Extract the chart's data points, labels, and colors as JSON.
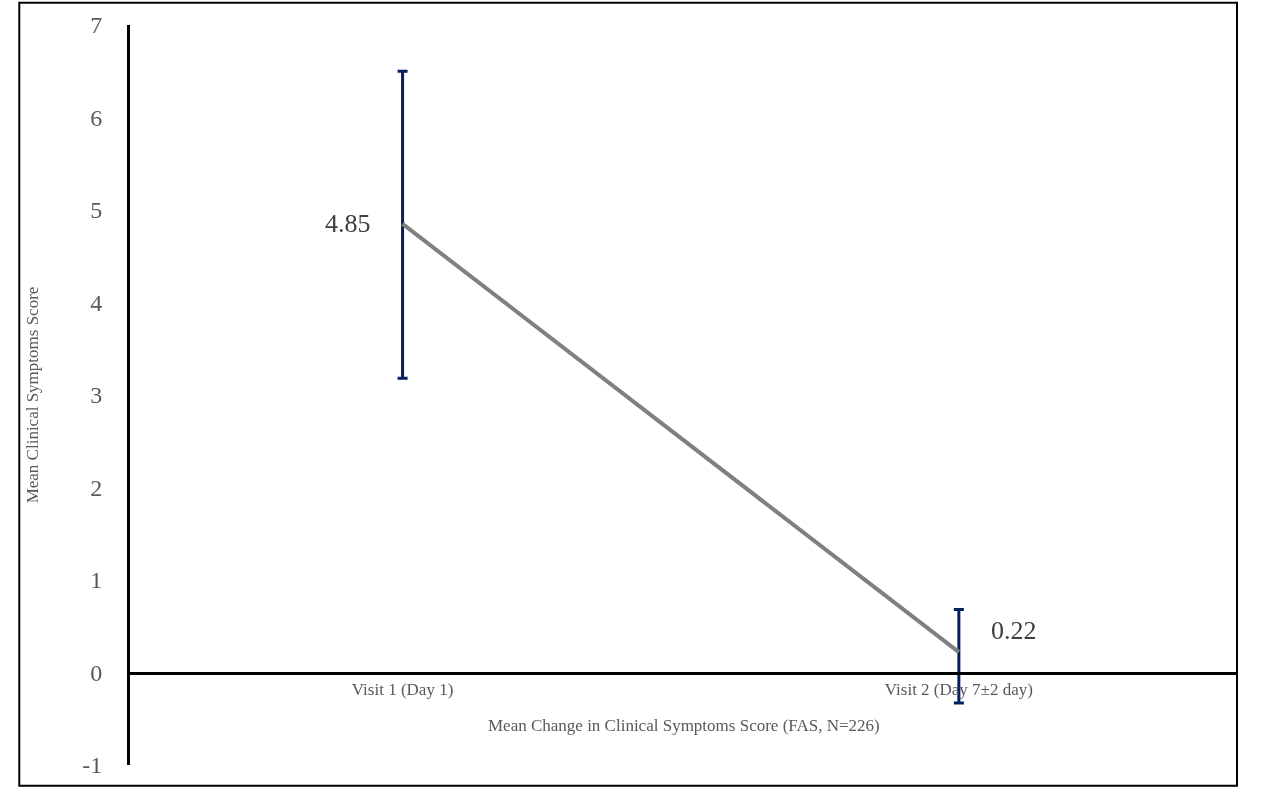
{
  "chart_data": {
    "type": "line",
    "xlabel": "Mean Change in Clinical Symptoms Score (FAS, N=226)",
    "ylabel": "Mean Clinical Symptoms Score",
    "categories": [
      "Visit 1 (Day 1)",
      "Visit 2 (Day 7±2 day)"
    ],
    "series": [
      {
        "color": "#808080",
        "values": [
          4.85,
          0.22
        ],
        "errors": [
          [
            3.18,
            6.5
          ],
          [
            -0.33,
            0.68
          ]
        ]
      }
    ],
    "ylim": [
      -1,
      7
    ],
    "yticks": [
      -1,
      0,
      1,
      2,
      3,
      4,
      5,
      6,
      7
    ],
    "data_labels": true,
    "grid": false,
    "legend": false,
    "marker": "none",
    "line_style": "solid"
  }
}
